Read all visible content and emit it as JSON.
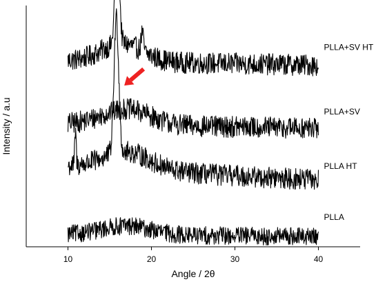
{
  "chart_data": {
    "type": "line",
    "title": "",
    "xlabel": "Angle / 2θ",
    "ylabel": "Intensity / a.u",
    "xlim": [
      5,
      45
    ],
    "xticks": [
      10,
      20,
      30,
      40
    ],
    "y_ticks_shown": false,
    "grid": false,
    "line_color": "#000000",
    "arrow_color": "#ee2222",
    "series": [
      {
        "name": "PLLA+SV HT",
        "x_range": [
          10,
          40
        ],
        "baseline": 0.79,
        "noise": 0.06,
        "peaks": [
          {
            "x": 15.9,
            "height": 0.53,
            "width": 0.35
          },
          {
            "x": 18.9,
            "height": 0.08,
            "width": 0.2
          }
        ],
        "hump": {
          "center": 16.5,
          "height": 0.08,
          "width": 3.5
        },
        "decay": 0.02
      },
      {
        "name": "PLLA+SV",
        "x_range": [
          10,
          40
        ],
        "baseline": 0.51,
        "noise": 0.06,
        "peaks": [],
        "hump": {
          "center": 17,
          "height": 0.07,
          "width": 4
        },
        "decay": 0.02
      },
      {
        "name": "PLLA HT",
        "x_range": [
          10,
          40
        ],
        "baseline": 0.28,
        "noise": 0.06,
        "peaks": [
          {
            "x": 15.8,
            "height": 0.6,
            "width": 0.4
          },
          {
            "x": 10.9,
            "height": 0.15,
            "width": 0.12
          }
        ],
        "hump": {
          "center": 17,
          "height": 0.08,
          "width": 4
        },
        "decay": 0.06
      },
      {
        "name": "PLLA",
        "x_range": [
          10,
          40
        ],
        "baseline": 0.03,
        "noise": 0.05,
        "peaks": [],
        "hump": {
          "center": 17,
          "height": 0.04,
          "width": 4
        },
        "decay": 0.01
      }
    ],
    "annotations": [
      {
        "type": "arrow",
        "points_to": {
          "x": 16.5,
          "series": "PLLA+SV HT"
        }
      },
      {
        "type": "arrow",
        "points_to": {
          "x": 16.5,
          "series": "PLLA HT"
        }
      }
    ]
  }
}
